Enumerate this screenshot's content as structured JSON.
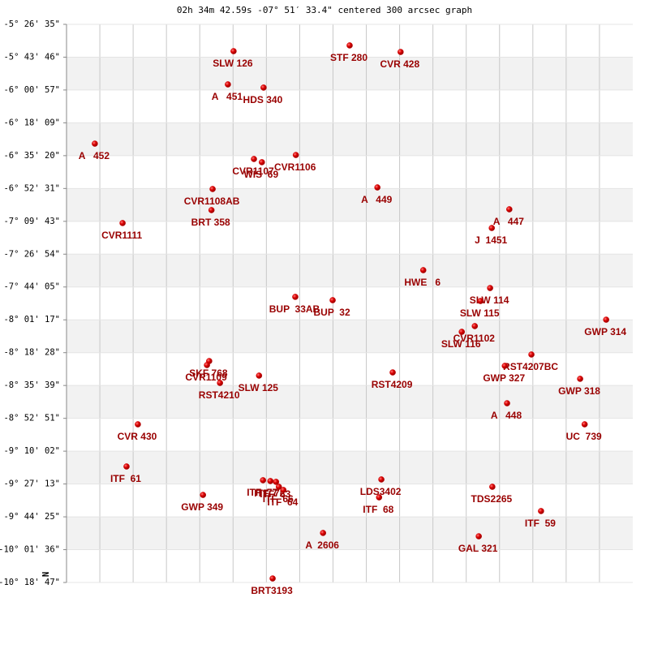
{
  "chart_data": {
    "type": "scatter",
    "title": "02h 34m 42.59s -07° 51′ 33.4\" centered 300 arcsec graph",
    "north_label": "N",
    "color": "#cc0000",
    "label_color": "#990000",
    "grid": true,
    "xlim": [
      0,
      100
    ],
    "ylim": [
      -10.31306,
      -5.44306
    ],
    "yticks": [
      {
        "value": -5.44306,
        "label": "-5° 26' 35\""
      },
      {
        "value": -5.72944,
        "label": "-5° 43' 46\""
      },
      {
        "value": -6.01583,
        "label": "-6° 00' 57\""
      },
      {
        "value": -6.3025,
        "label": "-6° 18' 09\""
      },
      {
        "value": -6.58889,
        "label": "-6° 35' 20\""
      },
      {
        "value": -6.87528,
        "label": "-6° 52' 31\""
      },
      {
        "value": -7.16194,
        "label": "-7° 09' 43\""
      },
      {
        "value": -7.44833,
        "label": "-7° 26' 54\""
      },
      {
        "value": -7.73472,
        "label": "-7° 44' 05\""
      },
      {
        "value": -8.02139,
        "label": "-8° 01' 17\""
      },
      {
        "value": -8.30778,
        "label": "-8° 18' 28\""
      },
      {
        "value": -8.59417,
        "label": "-8° 35' 39\""
      },
      {
        "value": -8.88083,
        "label": "-8° 52' 51\""
      },
      {
        "value": -9.16722,
        "label": "-9° 10' 02\""
      },
      {
        "value": -9.45361,
        "label": "-9° 27' 13\""
      },
      {
        "value": -9.74028,
        "label": "-9° 44' 25\""
      },
      {
        "value": -10.02667,
        "label": "-10° 01' 36\""
      },
      {
        "value": -10.31306,
        "label": "-10° 18' 47\""
      }
    ],
    "labels": [
      "SLW 126",
      "A   451",
      "HDS 340",
      "STF 280",
      "CVR 428",
      "A   452",
      "CVR1107",
      "WIS  69",
      "CVR1106",
      "A   449",
      "CVR1108AB",
      "BRT 358",
      "CVR1111",
      "A   447",
      "J  1451",
      "HWE   6",
      "SLW 114",
      "SLW 115",
      "BUP  33AB",
      "BUP  32",
      "GWP 314",
      "CVR1102",
      "SLW 116",
      "RST4207BC",
      "SKF 768",
      "CVR1109",
      "SLW 125",
      "RST4209",
      "GWP 327",
      "RST4210",
      "GWP 318",
      "A   448",
      "CVR 430",
      "UC  739",
      "ITF  61",
      "LDS3402",
      "ITF  68",
      "TDS2265",
      "ITF  77",
      "ITF  72",
      "ITF  63",
      "ITF  66",
      "ITF  64",
      "GWP 349",
      "ITF  59",
      "A  2606",
      "GAL 321",
      "BRT3193"
    ],
    "x": [
      29.5,
      28.5,
      34.8,
      50.0,
      59.0,
      5.0,
      33.1,
      34.5,
      40.5,
      54.9,
      25.8,
      25.6,
      9.9,
      78.2,
      75.1,
      63.0,
      74.8,
      73.1,
      40.4,
      47.0,
      95.3,
      72.1,
      69.8,
      82.1,
      25.2,
      24.8,
      34.0,
      57.6,
      77.4,
      27.1,
      90.7,
      77.8,
      12.6,
      91.5,
      10.6,
      55.6,
      55.2,
      75.2,
      34.7,
      36.0,
      37.0,
      37.5,
      38.3,
      24.1,
      83.8,
      45.3,
      72.8,
      36.4
    ],
    "y": [
      -5.677,
      -5.967,
      -5.995,
      -5.627,
      -5.684,
      -6.484,
      -6.618,
      -6.646,
      -6.583,
      -6.866,
      -6.88,
      -7.064,
      -7.177,
      -7.057,
      -7.22,
      -7.588,
      -7.744,
      -7.857,
      -7.821,
      -7.85,
      -8.02,
      -8.076,
      -8.126,
      -8.324,
      -8.381,
      -8.416,
      -8.508,
      -8.48,
      -8.423,
      -8.572,
      -8.536,
      -8.749,
      -8.933,
      -8.933,
      -9.301,
      -9.414,
      -9.57,
      -9.478,
      -9.421,
      -9.428,
      -9.435,
      -9.478,
      -9.506,
      -9.549,
      -9.69,
      -9.881,
      -9.91,
      -10.278
    ]
  }
}
